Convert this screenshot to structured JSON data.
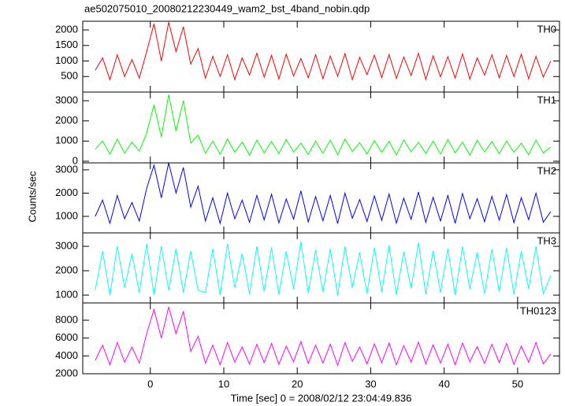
{
  "chart_data": [
    {
      "type": "line",
      "title": "ae502075010_20080212230449_wam2_bst_4band_nobin.qdp",
      "x": [
        -7.5,
        -6.5,
        -5.5,
        -4.5,
        -3.5,
        -2.5,
        -1.5,
        -0.5,
        0.5,
        1.5,
        2.5,
        3.5,
        4.5,
        5.5,
        6.5,
        7.5,
        8.5,
        9.5,
        10.5,
        11.5,
        12.5,
        13.5,
        14.5,
        15.5,
        16.5,
        17.5,
        18.5,
        19.5,
        20.5,
        21.5,
        22.5,
        23.5,
        24.5,
        25.5,
        26.5,
        27.5,
        28.5,
        29.5,
        30.5,
        31.5,
        32.5,
        33.5,
        34.5,
        35.5,
        36.5,
        37.5,
        38.5,
        39.5,
        40.5,
        41.5,
        42.5,
        43.5,
        44.5,
        45.5,
        46.5,
        47.5,
        48.5,
        49.5,
        50.5,
        51.5,
        52.5,
        53.5,
        54.5
      ],
      "xlim": [
        -9.2,
        55.7
      ],
      "ylim": [
        0,
        2280
      ],
      "yticks": [
        500,
        1000,
        1500,
        2000
      ],
      "series": [
        {
          "name": "TH0",
          "color": "#ff0000",
          "values": [
            700,
            1100,
            400,
            1200,
            500,
            1050,
            450,
            1300,
            2200,
            1000,
            2250,
            1300,
            2100,
            900,
            1400,
            450,
            1150,
            500,
            1200,
            400,
            1100,
            550,
            1250,
            480,
            1180,
            420,
            1220,
            520,
            1080,
            460,
            1200,
            430,
            1160,
            510,
            1240,
            400,
            1120,
            560,
            1190,
            470,
            1210,
            440,
            1130,
            530,
            1250,
            410,
            1170,
            490,
            1140,
            450,
            1230,
            420,
            1100,
            540,
            1200,
            460,
            1180,
            500,
            1220,
            430,
            1150,
            480,
            1000
          ]
        }
      ]
    },
    {
      "type": "line",
      "x": [
        -7.5,
        -6.5,
        -5.5,
        -4.5,
        -3.5,
        -2.5,
        -1.5,
        -0.5,
        0.5,
        1.5,
        2.5,
        3.5,
        4.5,
        5.5,
        6.5,
        7.5,
        8.5,
        9.5,
        10.5,
        11.5,
        12.5,
        13.5,
        14.5,
        15.5,
        16.5,
        17.5,
        18.5,
        19.5,
        20.5,
        21.5,
        22.5,
        23.5,
        24.5,
        25.5,
        26.5,
        27.5,
        28.5,
        29.5,
        30.5,
        31.5,
        32.5,
        33.5,
        34.5,
        35.5,
        36.5,
        37.5,
        38.5,
        39.5,
        40.5,
        41.5,
        42.5,
        43.5,
        44.5,
        45.5,
        46.5,
        47.5,
        48.5,
        49.5,
        50.5,
        51.5,
        52.5,
        53.5,
        54.5
      ],
      "xlim": [
        -9.2,
        55.7
      ],
      "ylim": [
        -80,
        3430
      ],
      "yticks": [
        0,
        1000,
        2000,
        3000
      ],
      "series": [
        {
          "name": "TH1",
          "color": "#00ff00",
          "values": [
            600,
            1000,
            350,
            1100,
            400,
            950,
            500,
            1400,
            2800,
            1200,
            3300,
            1500,
            3000,
            900,
            1300,
            400,
            1000,
            350,
            1100,
            450,
            950,
            300,
            1050,
            420,
            980,
            380,
            1080,
            460,
            900,
            340,
            1000,
            400,
            1050,
            330,
            1100,
            480,
            920,
            360,
            1020,
            440,
            990,
            310,
            1060,
            470,
            940,
            390,
            1000,
            350,
            1080,
            420,
            950,
            300,
            1040,
            460,
            980,
            380,
            1010,
            440,
            900,
            320,
            1050,
            410,
            700
          ]
        }
      ]
    },
    {
      "type": "line",
      "ylabel": "Counts/sec",
      "x": [
        -7.5,
        -6.5,
        -5.5,
        -4.5,
        -3.5,
        -2.5,
        -1.5,
        -0.5,
        0.5,
        1.5,
        2.5,
        3.5,
        4.5,
        5.5,
        6.5,
        7.5,
        8.5,
        9.5,
        10.5,
        11.5,
        12.5,
        13.5,
        14.5,
        15.5,
        16.5,
        17.5,
        18.5,
        19.5,
        20.5,
        21.5,
        22.5,
        23.5,
        24.5,
        25.5,
        26.5,
        27.5,
        28.5,
        29.5,
        30.5,
        31.5,
        32.5,
        33.5,
        34.5,
        35.5,
        36.5,
        37.5,
        38.5,
        39.5,
        40.5,
        41.5,
        42.5,
        43.5,
        44.5,
        45.5,
        46.5,
        47.5,
        48.5,
        49.5,
        50.5,
        51.5,
        52.5,
        53.5,
        54.5
      ],
      "xlim": [
        -9.2,
        55.7
      ],
      "ylim": [
        290,
        3300
      ],
      "yticks": [
        1000,
        2000,
        3000
      ],
      "series": [
        {
          "name": "TH2",
          "color": "#0000ff",
          "values": [
            1000,
            1700,
            700,
            1900,
            900,
            1600,
            800,
            2200,
            3200,
            1800,
            3300,
            2000,
            3100,
            1400,
            2300,
            800,
            1800,
            700,
            2000,
            900,
            1700,
            750,
            1900,
            850,
            1950,
            720,
            1750,
            880,
            2100,
            760,
            1850,
            810,
            1900,
            690,
            2000,
            920,
            1720,
            780,
            1880,
            830,
            1960,
            710,
            1780,
            870,
            2050,
            740,
            1820,
            800,
            1900,
            700,
            1980,
            900,
            1760,
            770,
            1860,
            840,
            1940,
            730,
            1800,
            860,
            2000,
            750,
            1200
          ]
        }
      ]
    },
    {
      "type": "line",
      "x": [
        -7.5,
        -6.5,
        -5.5,
        -4.5,
        -3.5,
        -2.5,
        -1.5,
        -0.5,
        0.5,
        1.5,
        2.5,
        3.5,
        4.5,
        5.5,
        6.5,
        7.5,
        8.5,
        9.5,
        10.5,
        11.5,
        12.5,
        13.5,
        14.5,
        15.5,
        16.5,
        17.5,
        18.5,
        19.5,
        20.5,
        21.5,
        22.5,
        23.5,
        24.5,
        25.5,
        26.5,
        27.5,
        28.5,
        29.5,
        30.5,
        31.5,
        32.5,
        33.5,
        34.5,
        35.5,
        36.5,
        37.5,
        38.5,
        39.5,
        40.5,
        41.5,
        42.5,
        43.5,
        44.5,
        45.5,
        46.5,
        47.5,
        48.5,
        49.5,
        50.5,
        51.5,
        52.5,
        53.5,
        54.5
      ],
      "xlim": [
        -9.2,
        55.7
      ],
      "ylim": [
        680,
        3550
      ],
      "yticks": [
        1000,
        2000,
        3000
      ],
      "series": [
        {
          "name": "TH3",
          "color": "#00ffff",
          "values": [
            1200,
            2800,
            1000,
            3000,
            1300,
            2700,
            1100,
            3100,
            1000,
            3000,
            1200,
            2900,
            1100,
            2800,
            1200,
            1100,
            2900,
            1000,
            3100,
            1300,
            2700,
            1050,
            3000,
            1150,
            2950,
            1020,
            2800,
            1250,
            3200,
            1080,
            2850,
            1120,
            2900,
            990,
            3000,
            1300,
            2750,
            1060,
            2950,
            1130,
            3050,
            1010,
            2780,
            1270,
            3150,
            1040,
            2820,
            1100,
            2900,
            1000,
            3000,
            1250,
            2760,
            1070,
            2880,
            1140,
            2940,
            1030,
            2800,
            1260,
            3000,
            1050,
            1800
          ]
        }
      ]
    },
    {
      "type": "line",
      "xlabel": "Time [sec] 0 = 2008/02/12 23:04:49.836",
      "x": [
        -7.5,
        -6.5,
        -5.5,
        -4.5,
        -3.5,
        -2.5,
        -1.5,
        -0.5,
        0.5,
        1.5,
        2.5,
        3.5,
        4.5,
        5.5,
        6.5,
        7.5,
        8.5,
        9.5,
        10.5,
        11.5,
        12.5,
        13.5,
        14.5,
        15.5,
        16.5,
        17.5,
        18.5,
        19.5,
        20.5,
        21.5,
        22.5,
        23.5,
        24.5,
        25.5,
        26.5,
        27.5,
        28.5,
        29.5,
        30.5,
        31.5,
        32.5,
        33.5,
        34.5,
        35.5,
        36.5,
        37.5,
        38.5,
        39.5,
        40.5,
        41.5,
        42.5,
        43.5,
        44.5,
        45.5,
        46.5,
        47.5,
        48.5,
        49.5,
        50.5,
        51.5,
        52.5,
        53.5,
        54.5
      ],
      "xlim": [
        -9.2,
        55.7
      ],
      "xticks": [
        0,
        10,
        20,
        30,
        40,
        50
      ],
      "ylim": [
        2000,
        9940
      ],
      "yticks": [
        2000,
        4000,
        6000,
        8000
      ],
      "series": [
        {
          "name": "TH0123",
          "color": "#ff00ff",
          "values": [
            3500,
            5200,
            3000,
            5500,
            3300,
            5000,
            3200,
            6500,
            9200,
            6000,
            9500,
            6500,
            9000,
            4500,
            6200,
            3200,
            5200,
            3000,
            5500,
            3300,
            5000,
            3100,
            5300,
            3250,
            5400,
            3050,
            5100,
            3350,
            5600,
            3150,
            5200,
            3200,
            5300,
            2950,
            5500,
            3400,
            5000,
            3100,
            5350,
            3250,
            5450,
            3000,
            5150,
            3300,
            5550,
            3100,
            5250,
            3200,
            5300,
            3000,
            5450,
            3350,
            5050,
            3150,
            5300,
            3250,
            5400,
            3050,
            5100,
            3300,
            5500,
            3100,
            4200
          ]
        }
      ]
    }
  ]
}
